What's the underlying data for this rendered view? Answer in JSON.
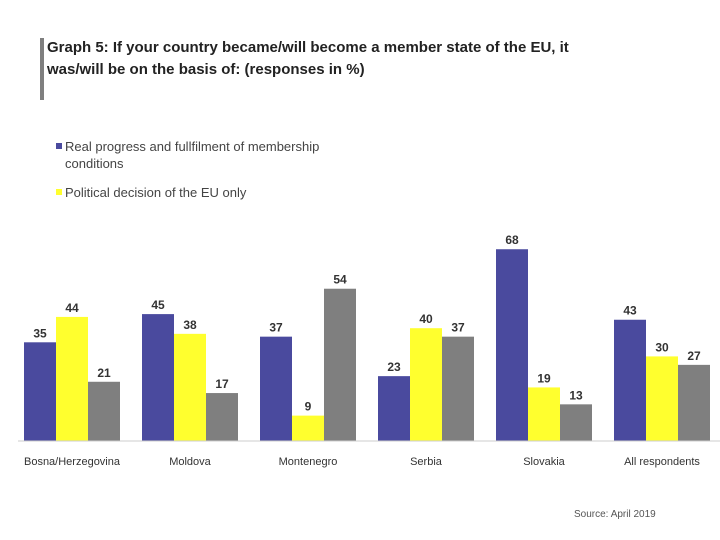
{
  "chart_data": {
    "type": "bar",
    "title": "Graph 5: If your country became/will become a member state of the EU, it was/will be on the basis of: (responses in %)",
    "categories": [
      "Bosna/Herzegovina",
      "Moldova",
      "Montenegro",
      "Serbia",
      "Slovakia",
      "All respondents"
    ],
    "series": [
      {
        "name": "Real progress and fullfilment of membership conditions",
        "color": "#4a4a9e",
        "values": [
          35,
          45,
          37,
          23,
          68,
          43
        ]
      },
      {
        "name": "Political decision of the EU only",
        "color": "#ffff2e",
        "values": [
          44,
          38,
          9,
          40,
          19,
          30
        ]
      },
      {
        "color": "#7f7f7f",
        "values": [
          21,
          17,
          54,
          37,
          13,
          27
        ]
      }
    ],
    "source": "Source: April 2019"
  }
}
